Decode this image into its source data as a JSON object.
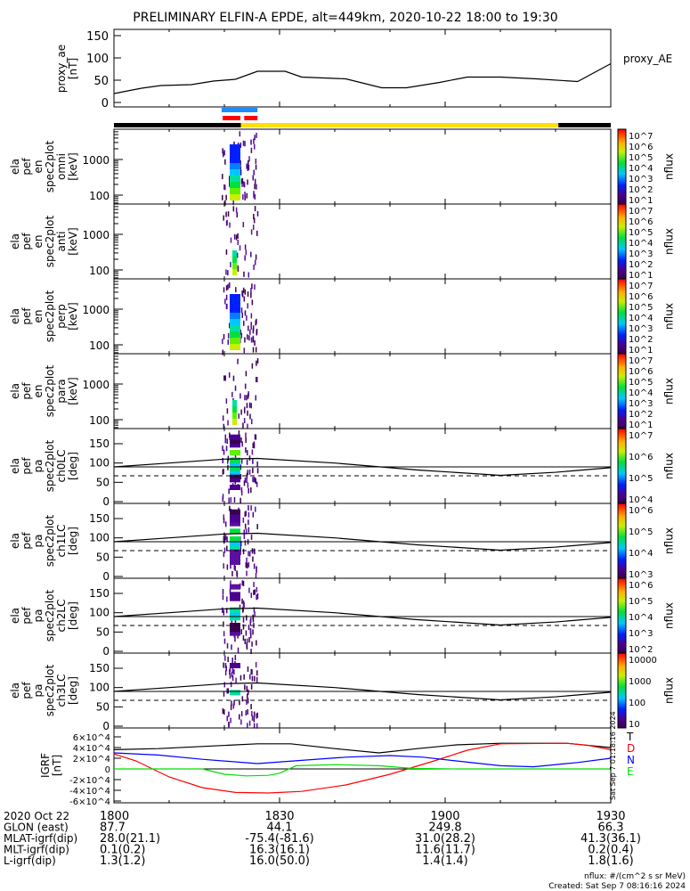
{
  "chart_data": {
    "type": "line",
    "title": "PRELIMINARY ELFIN-A EPDE, alt=449km, 2020-10-22 18:00 to 19:30",
    "x_unit": "minutes after 18:00",
    "xlim": [
      0,
      90
    ],
    "x_tick_labels": [
      "1800",
      "1830",
      "1900",
      "1930"
    ],
    "proxy_ae": {
      "ylabel_lines": [
        "proxy_ae",
        "[nT]"
      ],
      "legend": "proxy_AE",
      "ylim": [
        0,
        150
      ],
      "y_ticks": [
        "0",
        "50",
        "100",
        "150"
      ],
      "x": [
        0,
        5,
        8.5,
        14,
        18,
        22,
        26,
        31,
        34,
        42,
        48.5,
        53,
        59,
        64,
        70,
        76.5,
        84,
        90
      ],
      "y": [
        20,
        32,
        38,
        40,
        48,
        52,
        70,
        70,
        57,
        53,
        33,
        33,
        45,
        57,
        57,
        53,
        47,
        87
      ]
    },
    "bars": {
      "blue": [
        [
          19.5,
          26
        ]
      ],
      "red": [
        [
          19.7,
          22.9
        ],
        [
          23.6,
          26
        ]
      ],
      "black": [
        [
          0,
          23
        ],
        [
          80.5,
          90
        ]
      ],
      "yellow": [
        [
          23,
          80.5
        ]
      ],
      "colors": {
        "blue": "#1a8cff",
        "red": "#ff0000",
        "black": "#000000",
        "yellow": "#ffe000"
      }
    },
    "spectrograms": [
      {
        "id": "omni",
        "type": "energy",
        "label_lines": [
          "ela",
          "pef",
          "en",
          "spec2plot",
          "omni",
          "[keV]"
        ],
        "y_ticks": [
          "100",
          "1000"
        ],
        "cbar": [
          "10^7",
          "10^6",
          "10^5",
          "10^4",
          "10^3",
          "10^2",
          "10^1"
        ],
        "cbar_label": "nflux"
      },
      {
        "id": "anti",
        "type": "energy",
        "label_lines": [
          "ela",
          "pef",
          "en",
          "spec2plot",
          "anti",
          "[keV]"
        ],
        "y_ticks": [
          "100",
          "1000"
        ],
        "cbar": [
          "10^7",
          "10^6",
          "10^5",
          "10^4",
          "10^3",
          "10^2",
          "10^1"
        ],
        "cbar_label": "nflux"
      },
      {
        "id": "perp",
        "type": "energy",
        "label_lines": [
          "ela",
          "pef",
          "en",
          "spec2plot",
          "perp",
          "[keV]"
        ],
        "y_ticks": [
          "100",
          "1000"
        ],
        "cbar": [
          "10^7",
          "10^6",
          "10^5",
          "10^4",
          "10^3",
          "10^2",
          "10^1"
        ],
        "cbar_label": "nflux"
      },
      {
        "id": "para",
        "type": "energy",
        "label_lines": [
          "ela",
          "pef",
          "en",
          "spec2plot",
          "para",
          "[keV]"
        ],
        "y_ticks": [
          "100",
          "1000"
        ],
        "cbar": [
          "10^7",
          "10^6",
          "10^5",
          "10^4",
          "10^3",
          "10^2",
          "10^1"
        ],
        "cbar_label": "nflux"
      },
      {
        "id": "ch0LC",
        "type": "pa",
        "label_lines": [
          "ela",
          "pef",
          "pa",
          "spec2plot",
          "ch0LC",
          "[deg]"
        ],
        "y_ticks": [
          "0",
          "50",
          "100",
          "150"
        ],
        "cbar": [
          "10^7",
          "10^6",
          "10^5",
          "10^4"
        ],
        "cbar_label": "nflux"
      },
      {
        "id": "ch1LC",
        "type": "pa",
        "label_lines": [
          "ela",
          "pef",
          "pa",
          "spec2plot",
          "ch1LC",
          "[deg]"
        ],
        "y_ticks": [
          "0",
          "50",
          "100",
          "150"
        ],
        "cbar": [
          "10^6",
          "10^5",
          "10^4",
          "10^3"
        ],
        "cbar_label": "nflux"
      },
      {
        "id": "ch2LC",
        "type": "pa",
        "label_lines": [
          "ela",
          "pef",
          "pa",
          "spec2plot",
          "ch2LC",
          "[deg]"
        ],
        "y_ticks": [
          "0",
          "50",
          "100",
          "150"
        ],
        "cbar": [
          "10^6",
          "10^5",
          "10^4",
          "10^3",
          "10^2"
        ],
        "cbar_label": "nflux"
      },
      {
        "id": "ch3LC",
        "type": "pa",
        "label_lines": [
          "ela",
          "pef",
          "pa",
          "spec2plot",
          "ch3LC",
          "[deg]"
        ],
        "y_ticks": [
          "0",
          "50",
          "100",
          "150"
        ],
        "cbar": [
          "10000",
          "1000",
          "100",
          "10"
        ],
        "cbar_label": "nflux"
      }
    ],
    "pitch_angle_line": {
      "x": [
        0,
        10,
        20,
        26,
        40,
        55,
        70,
        80,
        90
      ],
      "y": [
        90,
        100,
        110,
        112,
        100,
        82,
        68,
        76,
        88
      ],
      "solid_ref": 90,
      "dashed_ref": 67
    },
    "igrf": {
      "ylabel_lines": [
        "IGRF",
        "[nT]"
      ],
      "ylim": [
        -70000,
        70000
      ],
      "y_ticks": [
        "6×10^4",
        "4×10^4",
        "2×10^4",
        "0",
        "-2×10^4",
        "-4×10^4",
        "-6×10^4"
      ],
      "legend": [
        "T",
        "D",
        "N",
        "E"
      ],
      "series": [
        {
          "name": "T",
          "color": "#000000",
          "x": [
            0,
            8,
            18,
            26,
            32,
            40,
            48,
            55,
            62,
            70,
            82,
            90
          ],
          "y": [
            36000,
            38000,
            43000,
            47000,
            47000,
            38000,
            30000,
            38000,
            45000,
            48000,
            48000,
            40000
          ]
        },
        {
          "name": "D",
          "color": "#ff0000",
          "x": [
            0,
            4,
            10,
            16,
            22,
            28,
            34,
            42,
            50,
            58,
            64,
            70,
            82,
            86,
            90
          ],
          "y": [
            28000,
            15000,
            -15000,
            -35000,
            -44000,
            -45000,
            -42000,
            -30000,
            -10000,
            15000,
            35000,
            47000,
            48000,
            44000,
            36000
          ]
        },
        {
          "name": "N",
          "color": "#0000ff",
          "x": [
            0,
            8,
            16,
            26,
            34,
            42,
            50,
            56,
            62,
            70,
            76,
            84,
            90
          ],
          "y": [
            30000,
            26000,
            18000,
            10000,
            16000,
            22000,
            25000,
            22000,
            15000,
            6000,
            4000,
            12000,
            20000
          ]
        },
        {
          "name": "E",
          "color": "#00dd00",
          "x": [
            0,
            16,
            20,
            24,
            28,
            30,
            33,
            40,
            48,
            54,
            62,
            90
          ],
          "y": [
            0,
            0,
            -10000,
            -13000,
            -12000,
            -8000,
            6000,
            8000,
            6000,
            1000,
            0,
            0
          ]
        }
      ]
    },
    "ephemeris": {
      "rows": [
        {
          "label": "2020 Oct 22",
          "values": [
            "1800",
            "1830",
            "1900",
            "1930"
          ]
        },
        {
          "label": "GLON (east)",
          "values": [
            "87.7",
            "44.1",
            "249.8",
            "66.3"
          ]
        },
        {
          "label": "MLAT-igrf(dip)",
          "values": [
            "28.0(21.1)",
            "-75.4(-81.6)",
            "31.0(28.2)",
            "41.3(36.1)"
          ]
        },
        {
          "label": "MLT-igrf(dip)",
          "values": [
            "0.1(0.2)",
            "16.3(16.1)",
            "11.6(11.7)",
            "0.2(0.4)"
          ]
        },
        {
          "label": "L-igrf(dip)",
          "values": [
            "1.3(1.2)",
            "16.0(50.0)",
            "1.4(1.4)",
            "1.8(1.6)"
          ]
        }
      ]
    },
    "footer": {
      "units": "nflux: #/(cm^2 s sr MeV)",
      "created": "Created: Sat Sep  7 08:16:16 2024",
      "side_stamp": "Sat Sep  7 01:18:16 2024"
    }
  }
}
